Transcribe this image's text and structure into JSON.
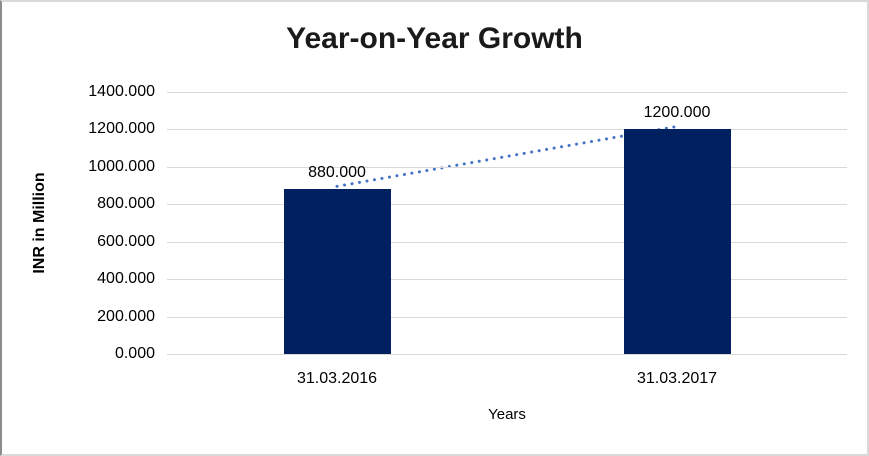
{
  "chart_data": {
    "type": "bar",
    "title": "Year-on-Year Growth",
    "xlabel": "Years",
    "ylabel": "INR in Million",
    "categories": [
      "31.03.2016",
      "31.03.2017"
    ],
    "values": [
      880,
      1200
    ],
    "value_labels": [
      "880.000",
      "1200.000"
    ],
    "ylim": [
      0,
      1400
    ],
    "ytick_step": 200,
    "ytick_labels": [
      "0.000",
      "200.000",
      "400.000",
      "600.000",
      "800.000",
      "1000.000",
      "1200.000",
      "1400.000"
    ],
    "grid": true,
    "legend_position": "none",
    "trendline": true,
    "colors": {
      "bar": "#002060",
      "trendline": "#4472c4",
      "gridline": "#d9d9d9",
      "title_text": "#1a1a1a",
      "axis_text": "#000000",
      "background": "#ffffff"
    }
  }
}
